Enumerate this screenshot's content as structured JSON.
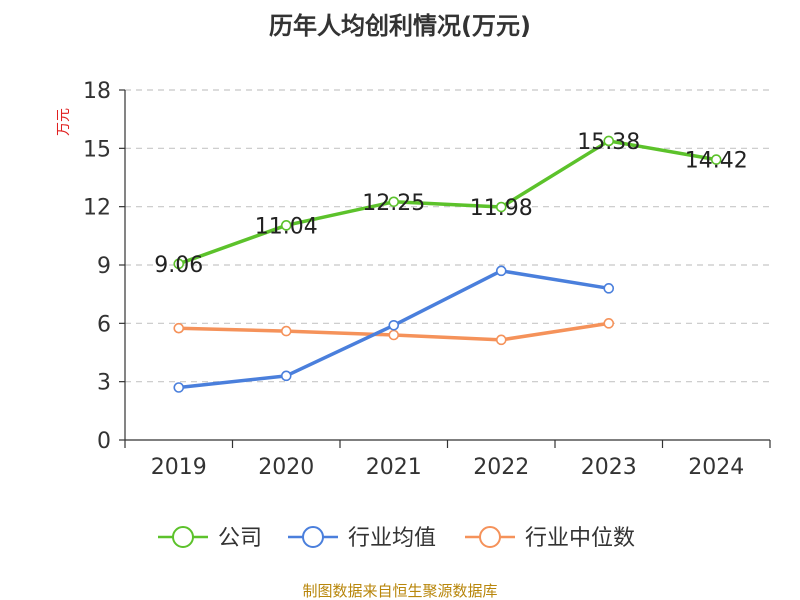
{
  "chart_data": {
    "type": "line",
    "title": "历年人均创利情况(万元)",
    "ylabel": "万元",
    "xlabel": "",
    "ylim": [
      0,
      18
    ],
    "yticks": [
      0,
      3,
      6,
      9,
      12,
      15,
      18
    ],
    "categories": [
      "2019",
      "2020",
      "2021",
      "2022",
      "2023",
      "2024"
    ],
    "series": [
      {
        "name": "公司",
        "color": "#5cc22b",
        "values": [
          9.06,
          11.04,
          12.25,
          11.98,
          15.38,
          14.42
        ],
        "labels": [
          "9.06",
          "11.04",
          "12.25",
          "11.98",
          "15.38",
          "14.42"
        ]
      },
      {
        "name": "行业均值",
        "color": "#4a7fdc",
        "values": [
          2.7,
          3.3,
          5.9,
          8.7,
          7.8,
          null
        ]
      },
      {
        "name": "行业中位数",
        "color": "#f5925a",
        "values": [
          5.75,
          5.6,
          5.4,
          5.15,
          6.0,
          null
        ]
      }
    ],
    "grid": true,
    "legend": "bottom"
  },
  "footer": {
    "source": "制图数据来自恒生聚源数据库"
  }
}
